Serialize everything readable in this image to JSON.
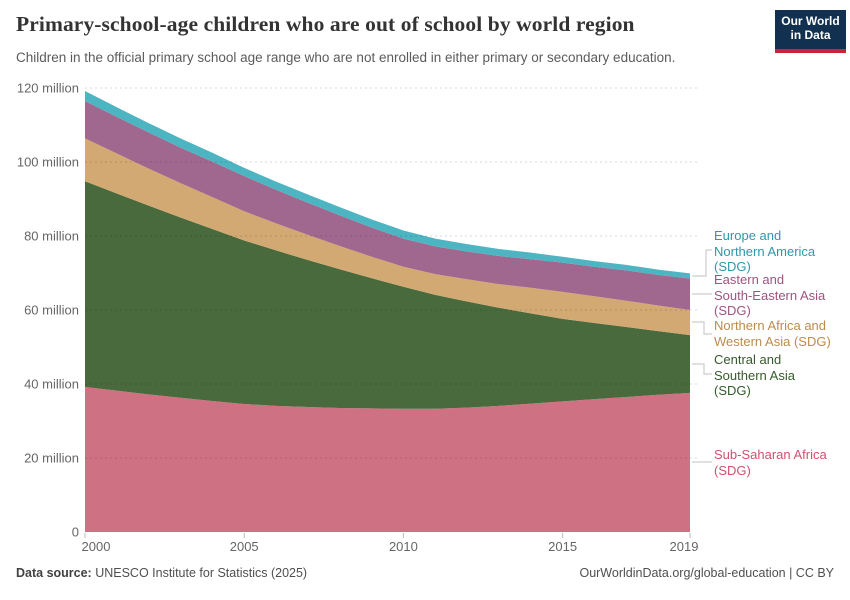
{
  "header": {
    "title": "Primary-school-age children who are out of school by world region",
    "subtitle": "Children in the official primary school age range who are not enrolled in either primary or secondary education.",
    "logo_line1": "Our World",
    "logo_line2": "in Data",
    "logo_bg": "#12304f",
    "logo_accent": "#c8243c"
  },
  "chart_data": {
    "type": "area",
    "stacked": true,
    "title": "Primary-school-age children who are out of school by world region",
    "x": [
      2000,
      2001,
      2002,
      2003,
      2004,
      2005,
      2006,
      2007,
      2008,
      2009,
      2010,
      2011,
      2012,
      2013,
      2014,
      2015,
      2016,
      2017,
      2018,
      2019
    ],
    "xticks": [
      2000,
      2005,
      2010,
      2015,
      2019
    ],
    "ylim": [
      0,
      120
    ],
    "ytick_values": [
      0,
      20,
      40,
      60,
      80,
      100,
      120
    ],
    "ytick_labels": [
      "0",
      "20 million",
      "40 million",
      "60 million",
      "80 million",
      "100 million",
      "120 million"
    ],
    "grid": true,
    "legend_position": "right",
    "unit": "million children",
    "series": [
      {
        "name": "Sub-Saharan Africa (SDG)",
        "color": "#ce7183",
        "values": [
          39.2,
          38.2,
          37.2,
          36.3,
          35.4,
          34.6,
          34.1,
          33.8,
          33.5,
          33.4,
          33.3,
          33.3,
          33.6,
          34.1,
          34.7,
          35.3,
          35.9,
          36.5,
          37.1,
          37.6
        ]
      },
      {
        "name": "Central and Southern Asia (SDG)",
        "color": "#486a3c",
        "values": [
          55.6,
          53.3,
          51.0,
          48.7,
          46.5,
          44.2,
          42.0,
          39.7,
          37.5,
          35.2,
          33.0,
          30.8,
          28.7,
          26.5,
          24.4,
          22.3,
          20.6,
          18.9,
          17.2,
          15.6
        ]
      },
      {
        "name": "Northern Africa and Western Asia (SDG)",
        "color": "#d3a973",
        "values": [
          11.6,
          10.8,
          10.0,
          9.3,
          8.6,
          7.9,
          7.3,
          6.8,
          6.3,
          5.8,
          5.4,
          5.6,
          6.0,
          6.4,
          6.9,
          7.3,
          7.2,
          7.1,
          6.9,
          6.8
        ]
      },
      {
        "name": "Eastern and South-Eastern Asia (SDG)",
        "color": "#a1688f",
        "values": [
          10.1,
          9.9,
          9.8,
          9.6,
          9.6,
          9.5,
          9.1,
          8.7,
          8.3,
          7.9,
          7.6,
          7.5,
          7.5,
          7.6,
          7.7,
          7.9,
          8.0,
          8.2,
          8.3,
          8.5
        ]
      },
      {
        "name": "Europe and Northern America (SDG)",
        "color": "#4db4c2",
        "values": [
          2.7,
          2.6,
          2.5,
          2.5,
          2.4,
          2.2,
          2.2,
          2.2,
          2.2,
          2.2,
          2.2,
          2.1,
          2.0,
          1.9,
          1.8,
          1.6,
          1.5,
          1.5,
          1.4,
          1.4
        ]
      }
    ]
  },
  "legend": {
    "items": [
      {
        "lines": [
          "Europe and",
          "Northern America",
          "(SDG)"
        ],
        "color": "#2e97ab"
      },
      {
        "lines": [
          "Eastern and",
          "South-Eastern Asia",
          "(SDG)"
        ],
        "color": "#9e5480"
      },
      {
        "lines": [
          "Northern Africa and",
          "Western Asia (SDG)"
        ],
        "color": "#bf8b4a"
      },
      {
        "lines": [
          "Central and",
          "Southern Asia",
          "(SDG)"
        ],
        "color": "#355a2b"
      },
      {
        "lines": [
          "Sub-Saharan Africa",
          "(SDG)"
        ],
        "color": "#ca5371"
      }
    ]
  },
  "footer": {
    "source_label": "Data source:",
    "source_text": " UNESCO Institute for Statistics (2025)",
    "link_text": "OurWorldinData.org/global-education | CC BY"
  }
}
